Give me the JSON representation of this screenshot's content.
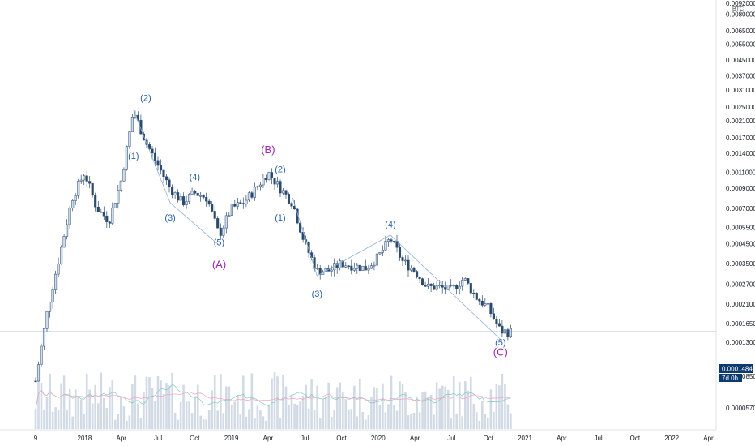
{
  "chart_data": {
    "type": "candlestick",
    "price_unit": "BTC",
    "y_scale": "log",
    "y_ticks": [
      "0.0092000",
      "0.0080000",
      "0.0065000",
      "0.0055000",
      "0.0045000",
      "0.0037000",
      "0.0031000",
      "0.0025000",
      "0.0021000",
      "0.0017000",
      "0.0014000",
      "0.0011000",
      "0.0009000",
      "0.0007000",
      "0.0005500",
      "0.0004500",
      "0.0003500",
      "0.0002700",
      "0.0002100",
      "0.0001650",
      "0.0001300",
      "0.0000850",
      "0.0000570"
    ],
    "x_ticks": [
      "9",
      "2018",
      "Apr",
      "Jul",
      "Oct",
      "2019",
      "Apr",
      "Jul",
      "Oct",
      "2020",
      "Apr",
      "Jul",
      "Oct",
      "2021",
      "Apr",
      "Jul",
      "Oct",
      "2022",
      "Apr"
    ],
    "current_price": "0.0001484",
    "countdown": "7d 0h",
    "ylim": [
      5e-05,
      0.0092
    ],
    "xlim": [
      "2017-09",
      "2022-05"
    ],
    "price_path": [
      {
        "x": "2017-09",
        "y": 8e-05
      },
      {
        "x": "2017-10",
        "y": 0.0002
      },
      {
        "x": "2017-11",
        "y": 0.0004
      },
      {
        "x": "2017-12",
        "y": 0.0008
      },
      {
        "x": "2018-01",
        "y": 0.0011
      },
      {
        "x": "2018-02",
        "y": 0.0007
      },
      {
        "x": "2018-03",
        "y": 0.0006
      },
      {
        "x": "2018-04",
        "y": 0.001
      },
      {
        "x": "2018-05",
        "y": 0.0024
      },
      {
        "x": "2018-06",
        "y": 0.0016
      },
      {
        "x": "2018-07",
        "y": 0.0012
      },
      {
        "x": "2018-08",
        "y": 0.0009
      },
      {
        "x": "2018-09",
        "y": 0.00075
      },
      {
        "x": "2018-10",
        "y": 0.00085
      },
      {
        "x": "2018-11",
        "y": 0.0008
      },
      {
        "x": "2018-12",
        "y": 0.0005
      },
      {
        "x": "2019-01",
        "y": 0.0007
      },
      {
        "x": "2019-02",
        "y": 0.00075
      },
      {
        "x": "2019-03",
        "y": 0.0009
      },
      {
        "x": "2019-04",
        "y": 0.0011
      },
      {
        "x": "2019-05",
        "y": 0.0009
      },
      {
        "x": "2019-06",
        "y": 0.00075
      },
      {
        "x": "2019-07",
        "y": 0.00045
      },
      {
        "x": "2019-08",
        "y": 0.00032
      },
      {
        "x": "2019-09",
        "y": 0.00032
      },
      {
        "x": "2019-10",
        "y": 0.00035
      },
      {
        "x": "2019-11",
        "y": 0.00034
      },
      {
        "x": "2019-12",
        "y": 0.00033
      },
      {
        "x": "2020-01",
        "y": 0.00038
      },
      {
        "x": "2020-02",
        "y": 0.00048
      },
      {
        "x": "2020-03",
        "y": 0.00036
      },
      {
        "x": "2020-04",
        "y": 0.00032
      },
      {
        "x": "2020-05",
        "y": 0.00026
      },
      {
        "x": "2020-06",
        "y": 0.00026
      },
      {
        "x": "2020-07",
        "y": 0.00025
      },
      {
        "x": "2020-08",
        "y": 0.00029
      },
      {
        "x": "2020-09",
        "y": 0.00023
      },
      {
        "x": "2020-10",
        "y": 0.0002
      },
      {
        "x": "2020-11",
        "y": 0.00015
      },
      {
        "x": "2020-12",
        "y": 0.000148
      }
    ],
    "annotations": [
      {
        "label": "(1)",
        "x": "2018-05",
        "y": 0.0013,
        "color": "blue"
      },
      {
        "label": "(2)",
        "x": "2018-06",
        "y": 0.0027,
        "color": "blue"
      },
      {
        "label": "(3)",
        "x": "2018-08",
        "y": 0.0006,
        "color": "blue"
      },
      {
        "label": "(4)",
        "x": "2018-10",
        "y": 0.001,
        "color": "blue"
      },
      {
        "label": "(5)",
        "x": "2018-12",
        "y": 0.00044,
        "color": "blue"
      },
      {
        "label": "(A)",
        "x": "2018-12",
        "y": 0.00033,
        "color": "purple"
      },
      {
        "label": "(B)",
        "x": "2019-04",
        "y": 0.0014,
        "color": "purple"
      },
      {
        "label": "(2)",
        "x": "2019-05",
        "y": 0.0011,
        "color": "blue"
      },
      {
        "label": "(1)",
        "x": "2019-05",
        "y": 0.0006,
        "color": "blue"
      },
      {
        "label": "(3)",
        "x": "2019-08",
        "y": 0.00023,
        "color": "blue"
      },
      {
        "label": "(4)",
        "x": "2020-02",
        "y": 0.00055,
        "color": "blue"
      },
      {
        "label": "(5)",
        "x": "2020-11",
        "y": 0.000125,
        "color": "blue"
      },
      {
        "label": "(C)",
        "x": "2020-11",
        "y": 0.00011,
        "color": "purple"
      }
    ],
    "colors": {
      "up": "#d0dcea",
      "down": "#2b4a6f",
      "volume": "#c9d3e0",
      "wave_blue": "#2962a8",
      "wave_purple": "#9c27b0",
      "price_line": "#5b8dc9",
      "price_tag": "#0d3a6e"
    }
  }
}
